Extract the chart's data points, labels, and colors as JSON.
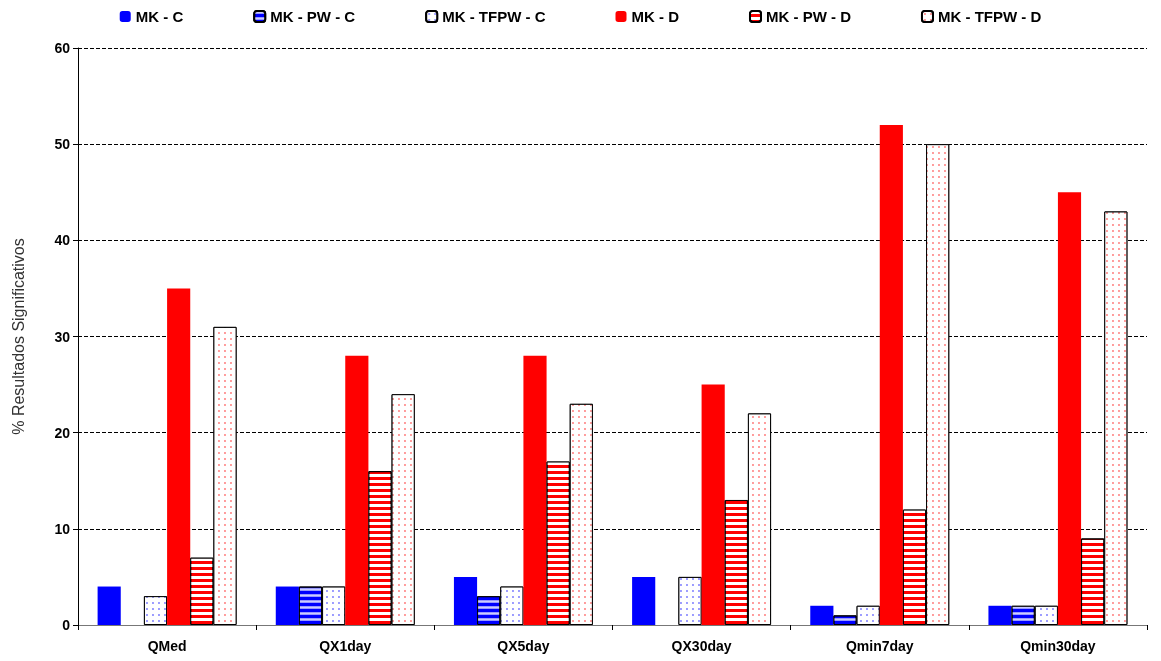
{
  "chart_data": {
    "type": "bar",
    "ylabel": "% Resultados Significativos",
    "categories": [
      "QMed",
      "QX1day",
      "QX5day",
      "QX30day",
      "Qmin7day",
      "Qmin30day"
    ],
    "series": [
      {
        "name": "MK - C",
        "color": "#0000ff",
        "values": [
          4,
          4,
          5,
          5,
          2,
          2
        ]
      },
      {
        "name": "MK - PW - C",
        "color": "#0000ff",
        "values": [
          null,
          4,
          3,
          null,
          1,
          2
        ]
      },
      {
        "name": "MK - TFPW - C",
        "color": "#0000ff",
        "values": [
          3,
          4,
          4,
          5,
          2,
          2
        ]
      },
      {
        "name": "MK - D",
        "color": "#ff0000",
        "values": [
          35,
          28,
          28,
          25,
          52,
          45
        ]
      },
      {
        "name": "MK - PW - D",
        "color": "#ff0000",
        "values": [
          7,
          16,
          17,
          13,
          12,
          9
        ]
      },
      {
        "name": "MK - TFPW - D",
        "color": "#ff0000",
        "values": [
          31,
          24,
          23,
          22,
          50,
          43
        ]
      }
    ],
    "ylim": [
      0,
      60
    ],
    "yticks": [
      0,
      10,
      20,
      30,
      40,
      50,
      60
    ],
    "grid": "y",
    "legend": "top"
  }
}
